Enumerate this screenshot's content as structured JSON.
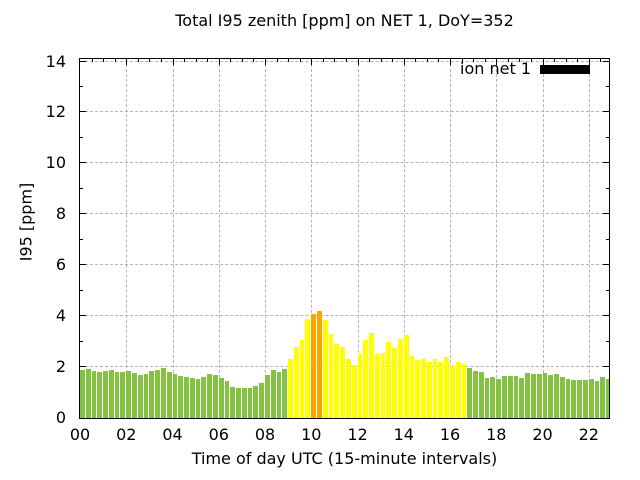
{
  "chart_data": {
    "type": "bar",
    "title": "Total I95 zenith [ppm] on NET 1, DoY=352",
    "xlabel": "Time of day UTC (15-minute intervals)",
    "ylabel": "I95 [ppm]",
    "ylim": [
      0,
      14.1
    ],
    "xlim_hours": [
      0,
      22.875
    ],
    "y_ticks": [
      0,
      2,
      4,
      6,
      8,
      10,
      12,
      14
    ],
    "x_ticks": [
      "00",
      "02",
      "04",
      "06",
      "08",
      "10",
      "12",
      "14",
      "16",
      "18",
      "20",
      "22"
    ],
    "grid": true,
    "bar_interval_minutes": 15,
    "legend": {
      "label": "ion net 1",
      "swatch_color": "#000000",
      "position": "top-right"
    },
    "colors": {
      "low": "#84c342",
      "mid": "#ffff00",
      "high": "#ffa500"
    },
    "thresholds": {
      "mid_min": 2,
      "high_min": 4
    },
    "series": [
      {
        "name": "ion net 1",
        "times": [
          "00:00",
          "00:15",
          "00:30",
          "00:45",
          "01:00",
          "01:15",
          "01:30",
          "01:45",
          "02:00",
          "02:15",
          "02:30",
          "02:45",
          "03:00",
          "03:15",
          "03:30",
          "03:45",
          "04:00",
          "04:15",
          "04:30",
          "04:45",
          "05:00",
          "05:15",
          "05:30",
          "05:45",
          "06:00",
          "06:15",
          "06:30",
          "06:45",
          "07:00",
          "07:15",
          "07:30",
          "07:45",
          "08:00",
          "08:15",
          "08:30",
          "08:45",
          "09:00",
          "09:15",
          "09:30",
          "09:45",
          "10:00",
          "10:15",
          "10:30",
          "10:45",
          "11:00",
          "11:15",
          "11:30",
          "11:45",
          "12:00",
          "12:15",
          "12:30",
          "12:45",
          "13:00",
          "13:15",
          "13:30",
          "13:45",
          "14:00",
          "14:15",
          "14:30",
          "14:45",
          "15:00",
          "15:15",
          "15:30",
          "15:45",
          "16:00",
          "16:15",
          "16:30",
          "16:45",
          "17:00",
          "17:15",
          "17:30",
          "17:45",
          "18:00",
          "18:15",
          "18:30",
          "18:45",
          "19:00",
          "19:15",
          "19:30",
          "19:45",
          "20:00",
          "20:15",
          "20:30",
          "20:45",
          "21:00",
          "21:15",
          "21:30",
          "21:45",
          "22:00",
          "22:15",
          "22:30",
          "22:45"
        ],
        "values": [
          1.9,
          1.94,
          1.85,
          1.81,
          1.84,
          1.87,
          1.81,
          1.8,
          1.84,
          1.75,
          1.67,
          1.72,
          1.83,
          1.9,
          1.97,
          1.79,
          1.72,
          1.64,
          1.6,
          1.57,
          1.52,
          1.6,
          1.72,
          1.68,
          1.58,
          1.46,
          1.21,
          1.18,
          1.16,
          1.18,
          1.26,
          1.39,
          1.68,
          1.88,
          1.79,
          1.94,
          2.3,
          2.8,
          3.08,
          3.9,
          4.1,
          4.2,
          3.85,
          3.3,
          2.9,
          2.8,
          2.3,
          2.1,
          2.5,
          3.05,
          3.35,
          2.5,
          2.55,
          3.0,
          2.73,
          3.1,
          3.25,
          2.45,
          2.27,
          2.3,
          2.18,
          2.3,
          2.21,
          2.4,
          2.08,
          2.21,
          2.11,
          1.95,
          1.86,
          1.8,
          1.56,
          1.61,
          1.53,
          1.63,
          1.64,
          1.64,
          1.59,
          1.78,
          1.72,
          1.72,
          1.76,
          1.7,
          1.74,
          1.6,
          1.52,
          1.48,
          1.51,
          1.48,
          1.55,
          1.45,
          1.6,
          1.55
        ]
      }
    ]
  }
}
